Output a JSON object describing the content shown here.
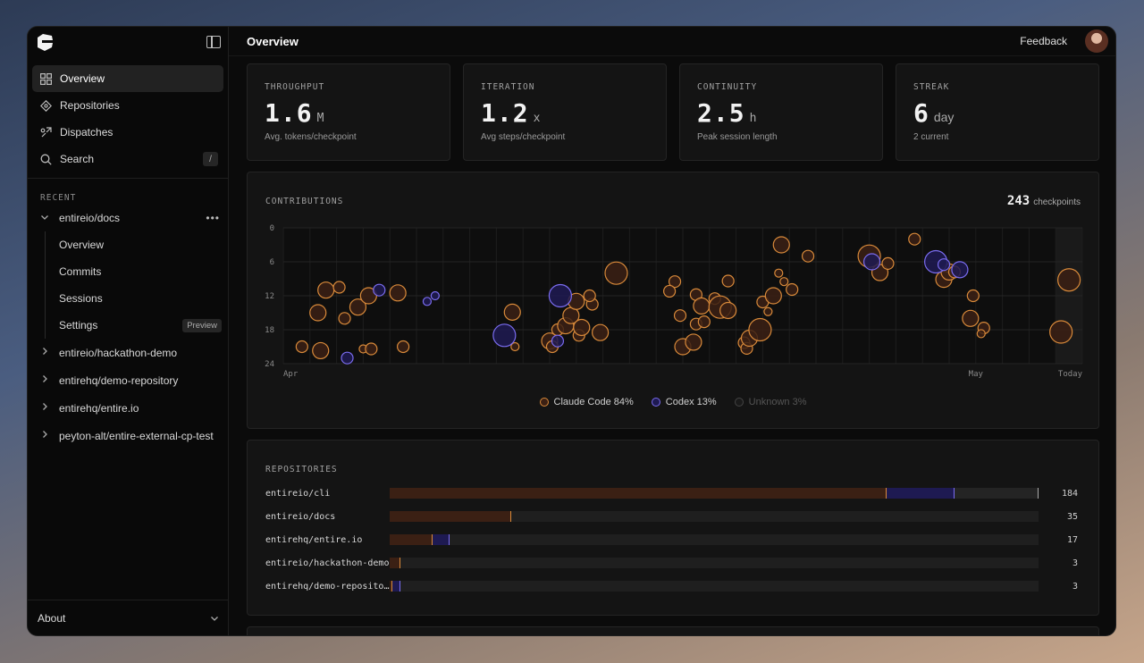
{
  "app": {
    "title": "Overview",
    "feedback_label": "Feedback"
  },
  "sidebar": {
    "nav": [
      {
        "label": "Overview",
        "icon": "grid-icon",
        "active": true
      },
      {
        "label": "Repositories",
        "icon": "diamond-icon"
      },
      {
        "label": "Dispatches",
        "icon": "dispatch-icon"
      },
      {
        "label": "Search",
        "icon": "search-icon",
        "shortcut": "/"
      }
    ],
    "recent_label": "RECENT",
    "expanded_repo": "entireio/docs",
    "sub_items": [
      {
        "label": "Overview"
      },
      {
        "label": "Commits"
      },
      {
        "label": "Sessions"
      },
      {
        "label": "Settings",
        "badge": "Preview"
      }
    ],
    "repos": [
      {
        "label": "entireio/hackathon-demo"
      },
      {
        "label": "entirehq/demo-repository"
      },
      {
        "label": "entirehq/entire.io"
      },
      {
        "label": "peyton-alt/entire-external-cp-test"
      }
    ],
    "about_label": "About"
  },
  "stats": [
    {
      "label": "THROUGHPUT",
      "value": "1.6",
      "unit": "M",
      "sub": "Avg. tokens/checkpoint"
    },
    {
      "label": "ITERATION",
      "value": "1.2",
      "unit": "x",
      "sub": "Avg steps/checkpoint"
    },
    {
      "label": "CONTINUITY",
      "value": "2.5",
      "unit": "h",
      "sub": "Peak session length"
    },
    {
      "label": "STREAK",
      "value": "6",
      "unit": "day",
      "sub": "2 current"
    }
  ],
  "contributions": {
    "label": "CONTRIBUTIONS",
    "count": "243",
    "count_label": "checkpoints",
    "legend": [
      {
        "label": "Claude Code 84%",
        "color": "#d98a3a"
      },
      {
        "label": "Codex 13%",
        "color": "#7a6cf0"
      },
      {
        "label": "Unknown 3%",
        "color": "#555555"
      }
    ]
  },
  "chart_data": {
    "type": "scatter",
    "y_ticks": [
      "0",
      "6",
      "12",
      "18",
      "24"
    ],
    "ylim": [
      0,
      24
    ],
    "x_tick_labels": [
      {
        "label": "Apr",
        "day": 0
      },
      {
        "label": "May",
        "day": 26
      },
      {
        "label": "Today",
        "day": 30
      }
    ],
    "xlim": [
      0,
      30
    ],
    "series": [
      {
        "name": "Claude Code",
        "color": "#d98a3a",
        "points": [
          [
            0.7,
            21.0,
            1
          ],
          [
            1.4,
            21.7,
            2
          ],
          [
            1.3,
            15.0,
            2
          ],
          [
            1.6,
            11.0,
            2
          ],
          [
            2.1,
            10.5,
            1
          ],
          [
            2.3,
            16.0,
            1
          ],
          [
            2.8,
            14.0,
            2
          ],
          [
            3.0,
            21.4,
            0
          ],
          [
            3.2,
            12.0,
            2
          ],
          [
            3.3,
            21.4,
            1
          ],
          [
            4.5,
            21.0,
            1
          ],
          [
            4.3,
            11.5,
            2
          ],
          [
            8.6,
            14.9,
            2
          ],
          [
            8.7,
            21.0,
            0
          ],
          [
            10.0,
            20.0,
            2
          ],
          [
            10.1,
            21.0,
            1
          ],
          [
            10.3,
            18.0,
            1
          ],
          [
            10.6,
            17.3,
            2
          ],
          [
            10.8,
            15.5,
            2
          ],
          [
            11.0,
            13.0,
            2
          ],
          [
            11.1,
            19.0,
            1
          ],
          [
            11.2,
            17.6,
            2
          ],
          [
            11.6,
            13.5,
            1
          ],
          [
            11.9,
            18.5,
            2
          ],
          [
            12.5,
            8.0,
            3
          ],
          [
            11.5,
            12.0,
            1
          ],
          [
            14.7,
            9.5,
            1
          ],
          [
            14.9,
            15.5,
            1
          ],
          [
            14.5,
            11.2,
            1
          ],
          [
            15.0,
            21.0,
            2
          ],
          [
            15.4,
            20.2,
            2
          ],
          [
            15.5,
            11.8,
            1
          ],
          [
            15.5,
            17.0,
            1
          ],
          [
            15.7,
            13.8,
            2
          ],
          [
            15.8,
            16.6,
            1
          ],
          [
            16.2,
            12.5,
            1
          ],
          [
            16.4,
            14.0,
            3
          ],
          [
            16.7,
            14.6,
            2
          ],
          [
            16.7,
            9.4,
            1
          ],
          [
            17.3,
            20.3,
            1
          ],
          [
            17.4,
            21.3,
            1
          ],
          [
            17.5,
            19.5,
            2
          ],
          [
            17.9,
            18.0,
            3
          ],
          [
            18.0,
            13.1,
            1
          ],
          [
            18.2,
            14.8,
            0
          ],
          [
            18.4,
            12.0,
            2
          ],
          [
            18.7,
            3.0,
            2
          ],
          [
            18.6,
            8.0,
            0
          ],
          [
            18.8,
            9.5,
            0
          ],
          [
            19.1,
            10.9,
            1
          ],
          [
            19.7,
            5.0,
            1
          ],
          [
            22.0,
            5.0,
            3
          ],
          [
            22.4,
            7.9,
            2
          ],
          [
            22.7,
            6.3,
            1
          ],
          [
            23.7,
            2.0,
            1
          ],
          [
            24.8,
            9.1,
            2
          ],
          [
            25.0,
            7.8,
            2
          ],
          [
            25.2,
            7.8,
            1
          ],
          [
            25.9,
            12.0,
            1
          ],
          [
            25.8,
            16.0,
            2
          ],
          [
            26.3,
            17.7,
            1
          ],
          [
            26.2,
            18.7,
            0
          ],
          [
            29.2,
            18.4,
            3
          ],
          [
            29.5,
            9.2,
            3
          ]
        ]
      },
      {
        "name": "Codex",
        "color": "#7a6cf0",
        "points": [
          [
            2.4,
            23.0,
            1
          ],
          [
            3.6,
            11.0,
            1
          ],
          [
            5.4,
            13.0,
            0
          ],
          [
            5.7,
            12.0,
            0
          ],
          [
            8.3,
            19.0,
            3
          ],
          [
            10.3,
            20.0,
            1
          ],
          [
            10.4,
            12.0,
            3
          ],
          [
            22.1,
            6.0,
            2
          ],
          [
            24.5,
            6.0,
            3
          ],
          [
            24.8,
            6.5,
            1
          ],
          [
            25.4,
            7.4,
            2
          ]
        ]
      }
    ]
  },
  "repositories": {
    "label": "REPOSITORIES",
    "rows": [
      {
        "name": "entireio/cli",
        "count": "184",
        "claude": 0.766,
        "codex": 0.104,
        "unknown": 0.13
      },
      {
        "name": "entireio/docs",
        "count": "35",
        "claude": 0.188,
        "codex": 0.0,
        "unknown": 0.0
      },
      {
        "name": "entirehq/entire.io",
        "count": "17",
        "claude": 0.066,
        "codex": 0.026,
        "unknown": 0.0
      },
      {
        "name": "entireio/hackathon-demo",
        "count": "3",
        "claude": 0.016,
        "codex": 0.0,
        "unknown": 0.0
      },
      {
        "name": "entirehq/demo-repository",
        "count": "3",
        "claude": 0.004,
        "codex": 0.012,
        "unknown": 0.0
      }
    ]
  },
  "colors": {
    "claude": "#d98a3a",
    "codex": "#7a6cf0",
    "claude_fill": "#3b2014",
    "codex_fill": "#1e1a52"
  }
}
